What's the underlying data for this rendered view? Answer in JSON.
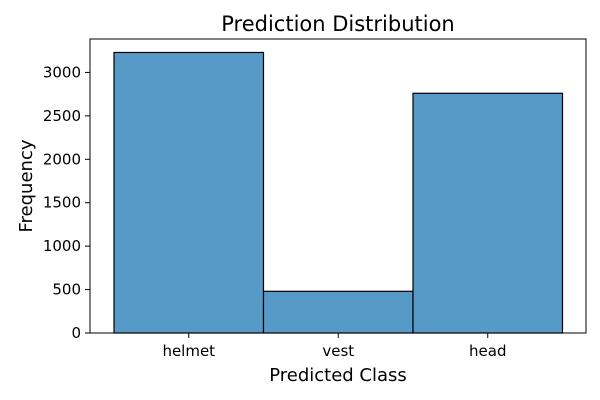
{
  "chart_data": {
    "type": "bar",
    "title": "Prediction Distribution",
    "xlabel": "Predicted Class",
    "ylabel": "Frequency",
    "categories": [
      "helmet",
      "vest",
      "head"
    ],
    "values": [
      3230,
      480,
      2760
    ],
    "ylim": [
      0,
      3385
    ],
    "yticks": [
      0,
      500,
      1000,
      1500,
      2000,
      2500,
      3000
    ],
    "bar_color": "#5799c7",
    "edge_color": "#000000",
    "grid": false,
    "legend": "none"
  }
}
